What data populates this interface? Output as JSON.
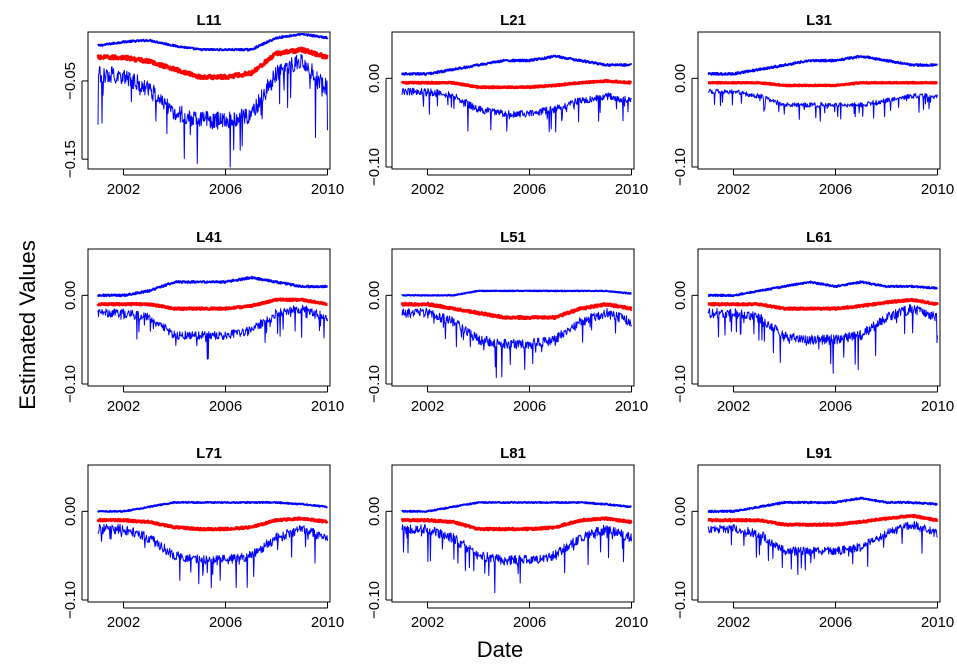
{
  "figure": {
    "ylabel": "Estimated Values",
    "xlabel": "Date"
  },
  "colors": {
    "bands": "#0000ff",
    "estimate": "#ff0000",
    "axis": "#000000"
  },
  "chart_data": [
    {
      "type": "line",
      "title": "L11",
      "xlim": [
        2001,
        2010
      ],
      "ylim": [
        -0.16,
        0.01
      ],
      "x_ticks": [
        "2002",
        "2006",
        "2010"
      ],
      "y_ticks": [
        "-0.05",
        "-0.15"
      ],
      "y_tick_values": [
        -0.05,
        -0.15
      ],
      "series": [
        {
          "role": "upper",
          "x": [
            2001,
            2002,
            2003,
            2004,
            2005,
            2006,
            2007,
            2008,
            2009,
            2010
          ],
          "y": [
            -0.005,
            0.0,
            0.002,
            -0.005,
            -0.01,
            -0.01,
            -0.01,
            0.005,
            0.01,
            0.005
          ]
        },
        {
          "role": "estimate",
          "x": [
            2001,
            2002,
            2003,
            2004,
            2005,
            2006,
            2007,
            2008,
            2009,
            2010
          ],
          "y": [
            -0.02,
            -0.02,
            -0.025,
            -0.035,
            -0.045,
            -0.045,
            -0.04,
            -0.015,
            -0.01,
            -0.02
          ]
        },
        {
          "role": "lower",
          "x": [
            2001,
            2002,
            2003,
            2004,
            2005,
            2006,
            2007,
            2008,
            2009,
            2010
          ],
          "y": [
            -0.04,
            -0.045,
            -0.06,
            -0.09,
            -0.1,
            -0.1,
            -0.095,
            -0.04,
            -0.025,
            -0.06
          ]
        }
      ]
    },
    {
      "type": "line",
      "title": "L21",
      "xlim": [
        2001,
        2010
      ],
      "ylim": [
        -0.1,
        0.05
      ],
      "x_ticks": [
        "2002",
        "2006",
        "2010"
      ],
      "y_ticks": [
        "0.00",
        "-0.10"
      ],
      "y_tick_values": [
        0.0,
        -0.1
      ],
      "series": [
        {
          "role": "upper",
          "x": [
            2001,
            2002,
            2003,
            2004,
            2005,
            2006,
            2007,
            2008,
            2009,
            2010
          ],
          "y": [
            0.005,
            0.005,
            0.01,
            0.015,
            0.02,
            0.02,
            0.025,
            0.02,
            0.015,
            0.015
          ]
        },
        {
          "role": "estimate",
          "x": [
            2001,
            2002,
            2003,
            2004,
            2005,
            2006,
            2007,
            2008,
            2009,
            2010
          ],
          "y": [
            -0.005,
            -0.005,
            -0.005,
            -0.01,
            -0.01,
            -0.01,
            -0.008,
            -0.005,
            -0.003,
            -0.005
          ]
        },
        {
          "role": "lower",
          "x": [
            2001,
            2002,
            2003,
            2004,
            2005,
            2006,
            2007,
            2008,
            2009,
            2010
          ],
          "y": [
            -0.015,
            -0.015,
            -0.02,
            -0.035,
            -0.04,
            -0.04,
            -0.035,
            -0.025,
            -0.02,
            -0.025
          ]
        }
      ]
    },
    {
      "type": "line",
      "title": "L31",
      "xlim": [
        2001,
        2010
      ],
      "ylim": [
        -0.1,
        0.05
      ],
      "x_ticks": [
        "2002",
        "2006",
        "2010"
      ],
      "y_ticks": [
        "0.00",
        "-0.10"
      ],
      "y_tick_values": [
        0.0,
        -0.1
      ],
      "series": [
        {
          "role": "upper",
          "x": [
            2001,
            2002,
            2003,
            2004,
            2005,
            2006,
            2007,
            2008,
            2009,
            2010
          ],
          "y": [
            0.005,
            0.005,
            0.01,
            0.015,
            0.02,
            0.02,
            0.025,
            0.02,
            0.015,
            0.015
          ]
        },
        {
          "role": "estimate",
          "x": [
            2001,
            2002,
            2003,
            2004,
            2005,
            2006,
            2007,
            2008,
            2009,
            2010
          ],
          "y": [
            -0.005,
            -0.005,
            -0.005,
            -0.008,
            -0.008,
            -0.008,
            -0.005,
            -0.005,
            -0.005,
            -0.005
          ]
        },
        {
          "role": "lower",
          "x": [
            2001,
            2002,
            2003,
            2004,
            2005,
            2006,
            2007,
            2008,
            2009,
            2010
          ],
          "y": [
            -0.015,
            -0.015,
            -0.02,
            -0.03,
            -0.03,
            -0.03,
            -0.03,
            -0.025,
            -0.02,
            -0.02
          ]
        }
      ]
    },
    {
      "type": "line",
      "title": "L41",
      "xlim": [
        2001,
        2010
      ],
      "ylim": [
        -0.1,
        0.05
      ],
      "x_ticks": [
        "2002",
        "2006",
        "2010"
      ],
      "y_ticks": [
        "0.00",
        "-0.10"
      ],
      "y_tick_values": [
        0.0,
        -0.1
      ],
      "series": [
        {
          "role": "upper",
          "x": [
            2001,
            2002,
            2003,
            2004,
            2005,
            2006,
            2007,
            2008,
            2009,
            2010
          ],
          "y": [
            0.0,
            0.0,
            0.005,
            0.015,
            0.015,
            0.015,
            0.02,
            0.015,
            0.01,
            0.01
          ]
        },
        {
          "role": "estimate",
          "x": [
            2001,
            2002,
            2003,
            2004,
            2005,
            2006,
            2007,
            2008,
            2009,
            2010
          ],
          "y": [
            -0.01,
            -0.01,
            -0.01,
            -0.015,
            -0.015,
            -0.015,
            -0.012,
            -0.005,
            -0.005,
            -0.01
          ]
        },
        {
          "role": "lower",
          "x": [
            2001,
            2002,
            2003,
            2004,
            2005,
            2006,
            2007,
            2008,
            2009,
            2010
          ],
          "y": [
            -0.02,
            -0.02,
            -0.025,
            -0.045,
            -0.045,
            -0.045,
            -0.04,
            -0.02,
            -0.015,
            -0.025
          ]
        }
      ]
    },
    {
      "type": "line",
      "title": "L51",
      "xlim": [
        2001,
        2010
      ],
      "ylim": [
        -0.1,
        0.05
      ],
      "x_ticks": [
        "2002",
        "2006",
        "2010"
      ],
      "y_ticks": [
        "0.00",
        "-0.10"
      ],
      "y_tick_values": [
        0.0,
        -0.1
      ],
      "series": [
        {
          "role": "upper",
          "x": [
            2001,
            2002,
            2003,
            2004,
            2005,
            2006,
            2007,
            2008,
            2009,
            2010
          ],
          "y": [
            0.0,
            0.0,
            0.0,
            0.005,
            0.005,
            0.005,
            0.005,
            0.005,
            0.005,
            0.002
          ]
        },
        {
          "role": "estimate",
          "x": [
            2001,
            2002,
            2003,
            2004,
            2005,
            2006,
            2007,
            2008,
            2009,
            2010
          ],
          "y": [
            -0.01,
            -0.01,
            -0.015,
            -0.02,
            -0.025,
            -0.025,
            -0.025,
            -0.015,
            -0.01,
            -0.015
          ]
        },
        {
          "role": "lower",
          "x": [
            2001,
            2002,
            2003,
            2004,
            2005,
            2006,
            2007,
            2008,
            2009,
            2010
          ],
          "y": [
            -0.02,
            -0.02,
            -0.03,
            -0.05,
            -0.055,
            -0.055,
            -0.05,
            -0.03,
            -0.02,
            -0.03
          ]
        }
      ]
    },
    {
      "type": "line",
      "title": "L61",
      "xlim": [
        2001,
        2010
      ],
      "ylim": [
        -0.1,
        0.05
      ],
      "x_ticks": [
        "2002",
        "2006",
        "2010"
      ],
      "y_ticks": [
        "0.00",
        "-0.10"
      ],
      "y_tick_values": [
        0.0,
        -0.1
      ],
      "series": [
        {
          "role": "upper",
          "x": [
            2001,
            2002,
            2003,
            2004,
            2005,
            2006,
            2007,
            2008,
            2009,
            2010
          ],
          "y": [
            0.0,
            0.0,
            0.005,
            0.01,
            0.015,
            0.01,
            0.015,
            0.01,
            0.01,
            0.008
          ]
        },
        {
          "role": "estimate",
          "x": [
            2001,
            2002,
            2003,
            2004,
            2005,
            2006,
            2007,
            2008,
            2009,
            2010
          ],
          "y": [
            -0.01,
            -0.01,
            -0.01,
            -0.015,
            -0.015,
            -0.015,
            -0.012,
            -0.008,
            -0.005,
            -0.01
          ]
        },
        {
          "role": "lower",
          "x": [
            2001,
            2002,
            2003,
            2004,
            2005,
            2006,
            2007,
            2008,
            2009,
            2010
          ],
          "y": [
            -0.02,
            -0.02,
            -0.025,
            -0.045,
            -0.05,
            -0.05,
            -0.045,
            -0.025,
            -0.015,
            -0.025
          ]
        }
      ]
    },
    {
      "type": "line",
      "title": "L71",
      "xlim": [
        2001,
        2010
      ],
      "ylim": [
        -0.1,
        0.05
      ],
      "x_ticks": [
        "2002",
        "2006",
        "2010"
      ],
      "y_ticks": [
        "0.00",
        "-0.10"
      ],
      "y_tick_values": [
        0.0,
        -0.1
      ],
      "series": [
        {
          "role": "upper",
          "x": [
            2001,
            2002,
            2003,
            2004,
            2005,
            2006,
            2007,
            2008,
            2009,
            2010
          ],
          "y": [
            0.0,
            0.0,
            0.005,
            0.01,
            0.01,
            0.01,
            0.01,
            0.01,
            0.008,
            0.005
          ]
        },
        {
          "role": "estimate",
          "x": [
            2001,
            2002,
            2003,
            2004,
            2005,
            2006,
            2007,
            2008,
            2009,
            2010
          ],
          "y": [
            -0.01,
            -0.01,
            -0.012,
            -0.018,
            -0.02,
            -0.02,
            -0.018,
            -0.01,
            -0.008,
            -0.012
          ]
        },
        {
          "role": "lower",
          "x": [
            2001,
            2002,
            2003,
            2004,
            2005,
            2006,
            2007,
            2008,
            2009,
            2010
          ],
          "y": [
            -0.02,
            -0.02,
            -0.03,
            -0.05,
            -0.055,
            -0.055,
            -0.05,
            -0.03,
            -0.02,
            -0.03
          ]
        }
      ]
    },
    {
      "type": "line",
      "title": "L81",
      "xlim": [
        2001,
        2010
      ],
      "ylim": [
        -0.1,
        0.05
      ],
      "x_ticks": [
        "2002",
        "2006",
        "2010"
      ],
      "y_ticks": [
        "0.00",
        "-0.10"
      ],
      "y_tick_values": [
        0.0,
        -0.1
      ],
      "series": [
        {
          "role": "upper",
          "x": [
            2001,
            2002,
            2003,
            2004,
            2005,
            2006,
            2007,
            2008,
            2009,
            2010
          ],
          "y": [
            0.0,
            0.0,
            0.005,
            0.01,
            0.01,
            0.01,
            0.01,
            0.01,
            0.008,
            0.005
          ]
        },
        {
          "role": "estimate",
          "x": [
            2001,
            2002,
            2003,
            2004,
            2005,
            2006,
            2007,
            2008,
            2009,
            2010
          ],
          "y": [
            -0.01,
            -0.01,
            -0.012,
            -0.02,
            -0.02,
            -0.02,
            -0.018,
            -0.01,
            -0.008,
            -0.012
          ]
        },
        {
          "role": "lower",
          "x": [
            2001,
            2002,
            2003,
            2004,
            2005,
            2006,
            2007,
            2008,
            2009,
            2010
          ],
          "y": [
            -0.02,
            -0.02,
            -0.03,
            -0.05,
            -0.055,
            -0.055,
            -0.05,
            -0.03,
            -0.02,
            -0.03
          ]
        }
      ]
    },
    {
      "type": "line",
      "title": "L91",
      "xlim": [
        2001,
        2010
      ],
      "ylim": [
        -0.1,
        0.05
      ],
      "x_ticks": [
        "2002",
        "2006",
        "2010"
      ],
      "y_ticks": [
        "0.00",
        "-0.10"
      ],
      "y_tick_values": [
        0.0,
        -0.1
      ],
      "series": [
        {
          "role": "upper",
          "x": [
            2001,
            2002,
            2003,
            2004,
            2005,
            2006,
            2007,
            2008,
            2009,
            2010
          ],
          "y": [
            0.0,
            0.0,
            0.005,
            0.01,
            0.01,
            0.01,
            0.015,
            0.01,
            0.01,
            0.008
          ]
        },
        {
          "role": "estimate",
          "x": [
            2001,
            2002,
            2003,
            2004,
            2005,
            2006,
            2007,
            2008,
            2009,
            2010
          ],
          "y": [
            -0.01,
            -0.01,
            -0.01,
            -0.015,
            -0.015,
            -0.015,
            -0.012,
            -0.008,
            -0.005,
            -0.01
          ]
        },
        {
          "role": "lower",
          "x": [
            2001,
            2002,
            2003,
            2004,
            2005,
            2006,
            2007,
            2008,
            2009,
            2010
          ],
          "y": [
            -0.02,
            -0.02,
            -0.025,
            -0.045,
            -0.045,
            -0.045,
            -0.04,
            -0.025,
            -0.015,
            -0.025
          ]
        }
      ]
    }
  ]
}
